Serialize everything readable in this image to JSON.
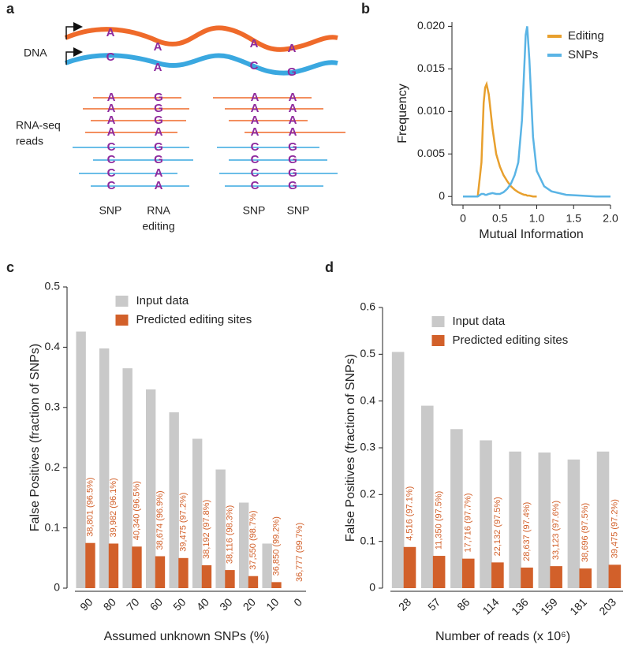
{
  "panel_labels": [
    "a",
    "b",
    "c",
    "d"
  ],
  "diagram": {
    "dna_label": "DNA",
    "rna_label": [
      "RNA-seq",
      "reads"
    ],
    "dna_bases": [
      [
        "A",
        "A",
        "A",
        "A"
      ],
      [
        "C",
        "A",
        "C",
        "G"
      ]
    ],
    "read_columns": [
      [
        "A",
        "A",
        "A",
        "A",
        "C",
        "C",
        "C",
        "C"
      ],
      [
        "G",
        "G",
        "G",
        "A",
        "G",
        "G",
        "A",
        "A"
      ],
      [
        "A",
        "A",
        "A",
        "A",
        "C",
        "C",
        "C",
        "C"
      ],
      [
        "A",
        "A",
        "A",
        "A",
        "G",
        "G",
        "G",
        "G"
      ]
    ],
    "site_labels": [
      [
        "SNP"
      ],
      [
        "RNA",
        "editing"
      ],
      [
        "SNP"
      ],
      [
        "SNP"
      ]
    ]
  },
  "chart_data": [
    {
      "type": "line",
      "x_label": "Mutual Information",
      "y_label": "Frequency",
      "x": [
        0,
        0.1,
        0.2,
        0.25,
        0.28,
        0.3,
        0.32,
        0.35,
        0.4,
        0.45,
        0.5,
        0.55,
        0.6,
        0.65,
        0.7,
        0.75,
        0.8,
        0.83,
        0.85,
        0.87,
        0.9,
        0.95,
        1.0,
        1.1,
        1.2,
        1.4,
        1.6,
        1.8,
        2.0
      ],
      "series": [
        {
          "name": "Editing",
          "color": "#e8a02e",
          "values": [
            null,
            null,
            0,
            0.004,
            0.011,
            0.0128,
            0.0132,
            0.012,
            0.008,
            0.005,
            0.0035,
            0.0025,
            0.0018,
            0.0012,
            0.0008,
            0.0005,
            0.0003,
            0.0002,
            0.0002,
            0.0001,
            0.0001,
            0,
            0,
            null,
            null,
            null,
            null,
            null,
            null
          ]
        },
        {
          "name": "SNPs",
          "color": "#5ab4e5",
          "values": [
            0,
            0,
            0,
            0.0003,
            0.0003,
            0.0002,
            0.0002,
            0.0003,
            0.0004,
            0.0003,
            0.0003,
            0.0005,
            0.0009,
            0.0015,
            0.0025,
            0.004,
            0.009,
            0.015,
            0.019,
            0.02,
            0.016,
            0.007,
            0.003,
            0.0012,
            0.0006,
            0.0002,
            0.0001,
            0,
            0
          ]
        }
      ],
      "xlim": [
        -0.15,
        2.0
      ],
      "ylim": [
        -0.001,
        0.0205
      ],
      "xticks": [
        0,
        0.5,
        {
          "value": 1,
          "label": "1.0"
        },
        1.5,
        {
          "value": 2,
          "label": "2.0"
        }
      ],
      "yticks": [
        0,
        0.005,
        {
          "value": 0.01,
          "label": "0.010"
        },
        0.015,
        {
          "value": 0.02,
          "label": "0.020"
        }
      ],
      "legend": "upper right"
    },
    {
      "type": "bar",
      "x_label": "Assumed unknown SNPs (%)",
      "y_label": "False Positives (fraction of SNPs)",
      "categories": [
        "90",
        "80",
        "70",
        "60",
        "50",
        "40",
        "30",
        "20",
        "10",
        "0"
      ],
      "series": [
        {
          "name": "Input data",
          "color": "#c9c9c9",
          "values": [
            0.426,
            0.398,
            0.365,
            0.33,
            0.292,
            0.248,
            0.197,
            0.142,
            0.074,
            0
          ]
        },
        {
          "name": "Predicted editing sites",
          "color": "#d2602a",
          "values": [
            0.075,
            0.074,
            0.069,
            0.053,
            0.05,
            0.038,
            0.03,
            0.02,
            0.01,
            0
          ]
        }
      ],
      "annotations": [
        "38,801 (96.5%)",
        "39,982 (96.1%)",
        "40,340 (96.5%)",
        "38,674 (96.9%)",
        "39,475 (97.2%)",
        "38,192 (97.8%)",
        "38,116 (98.3%)",
        "37,550 (98.7%)",
        "36,850 (99.2%)",
        "36,777 (99.7%)"
      ],
      "ylim": [
        0,
        0.5
      ],
      "yticks": [
        0,
        0.1,
        0.2,
        0.3,
        0.4,
        0.5
      ],
      "legend": "upper center"
    },
    {
      "type": "bar",
      "x_label": "Number of reads (x 10⁶)",
      "y_label": "False Positives (fraction of SNPs)",
      "categories": [
        "28",
        "57",
        "86",
        "114",
        "136",
        "159",
        "181",
        "203"
      ],
      "series": [
        {
          "name": "Input data",
          "color": "#c9c9c9",
          "values": [
            0.505,
            0.39,
            0.34,
            0.316,
            0.292,
            0.29,
            0.275,
            0.292
          ]
        },
        {
          "name": "Predicted editing sites",
          "color": "#d2602a",
          "values": [
            0.088,
            0.069,
            0.063,
            0.055,
            0.044,
            0.047,
            0.042,
            0.05
          ]
        }
      ],
      "annotations": [
        "4,516 (97.1%)",
        "11,350 (97.5%)",
        "17,716 (97.7%)",
        "22,132 (97.5%)",
        "28,637 (97.4%)",
        "33,123 (97.6%)",
        "38,696 (97.5%)",
        "39,475 (97.2%)"
      ],
      "ylim": [
        0,
        0.6
      ],
      "yticks": [
        0,
        0.1,
        0.2,
        0.3,
        0.4,
        0.5,
        0.6
      ],
      "legend": "upper center"
    }
  ]
}
